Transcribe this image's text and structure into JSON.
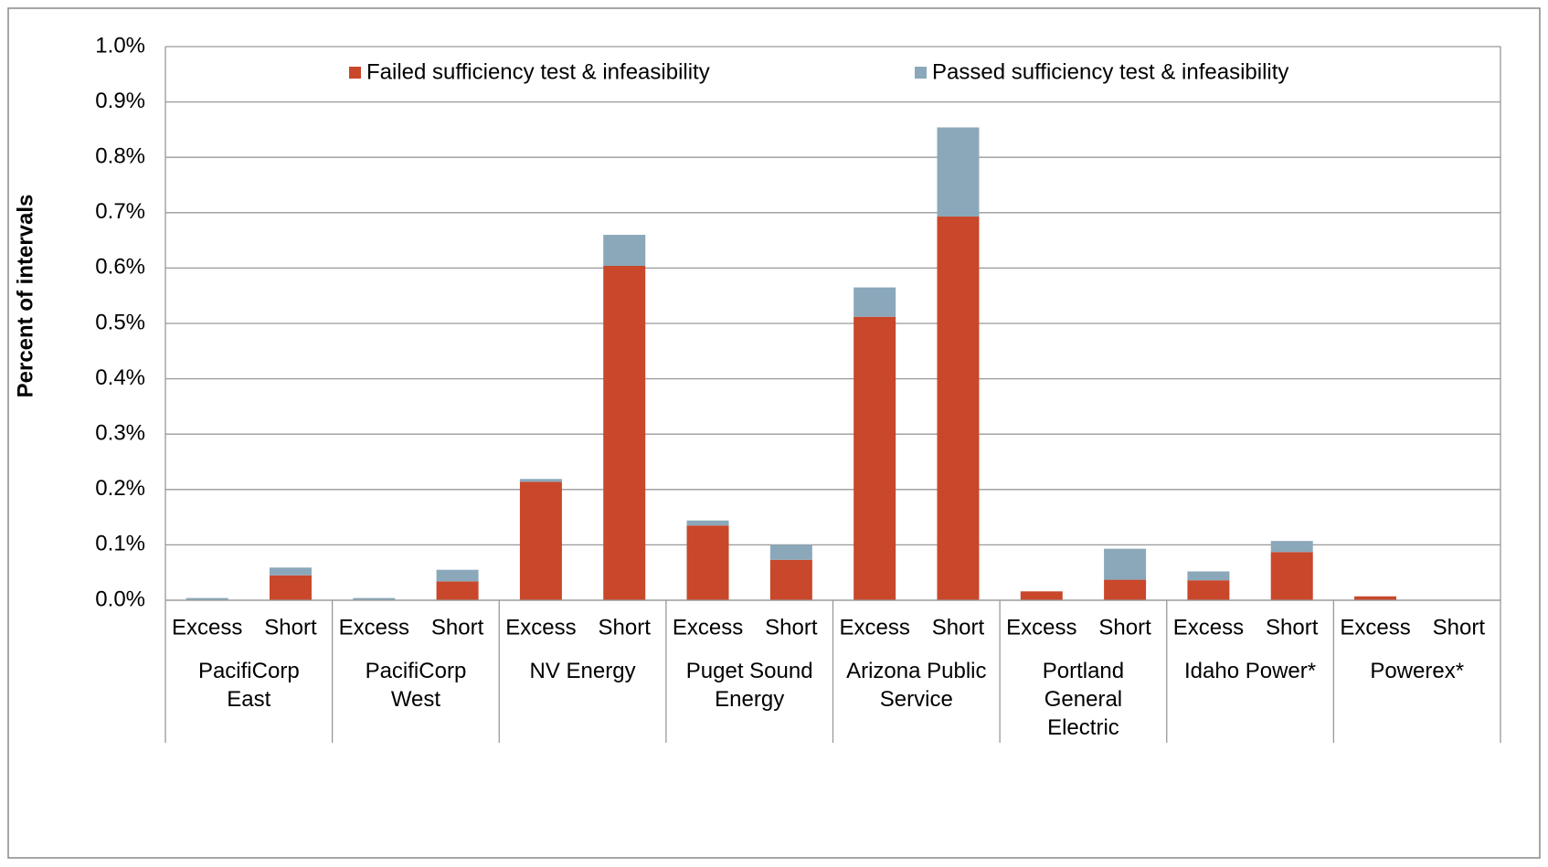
{
  "chart_data": {
    "type": "bar",
    "stacked": true,
    "y_label": "Percent of intervals",
    "categories": [
      "Excess",
      "Short",
      "Excess",
      "Short",
      "Excess",
      "Short",
      "Excess",
      "Short",
      "Excess",
      "Short",
      "Excess",
      "Short",
      "Excess",
      "Short",
      "Excess",
      "Short"
    ],
    "groups": [
      "PacifiCorp\nEast",
      "PacifiCorp\nWest",
      "NV Energy",
      "Puget Sound\nEnergy",
      "Arizona Public\nService",
      "Portland\nGeneral\nElectric",
      "Idaho Power*",
      "Powerex*"
    ],
    "series": [
      {
        "name": "Failed sufficiency test & infeasibility",
        "color": "#c9472a",
        "values": [
          0,
          0.045,
          0,
          0.034,
          0.214,
          0.604,
          0.135,
          0.073,
          0.512,
          0.693,
          0.016,
          0.037,
          0.036,
          0.087,
          0.007,
          0
        ]
      },
      {
        "name": "Passed sufficiency test & infeasibility",
        "color": "#8aa8ba",
        "values": [
          0.004,
          0.014,
          0.004,
          0.021,
          0.005,
          0.056,
          0.009,
          0.027,
          0.053,
          0.161,
          0,
          0.056,
          0.016,
          0.02,
          0,
          0
        ]
      }
    ],
    "ylim": [
      0,
      1.0
    ],
    "yticks": [
      {
        "value": 0,
        "label": "0.0%"
      },
      {
        "value": 0.1,
        "label": "0.1%"
      },
      {
        "value": 0.2,
        "label": "0.2%"
      },
      {
        "value": 0.3,
        "label": "0.3%"
      },
      {
        "value": 0.4,
        "label": "0.4%"
      },
      {
        "value": 0.5,
        "label": "0.5%"
      },
      {
        "value": 0.6,
        "label": "0.6%"
      },
      {
        "value": 0.7,
        "label": "0.7%"
      },
      {
        "value": 0.8,
        "label": "0.8%"
      },
      {
        "value": 0.9,
        "label": "0.9%"
      },
      {
        "value": 1.0,
        "label": "1.0%"
      }
    ],
    "grid": true,
    "legend": "top"
  }
}
